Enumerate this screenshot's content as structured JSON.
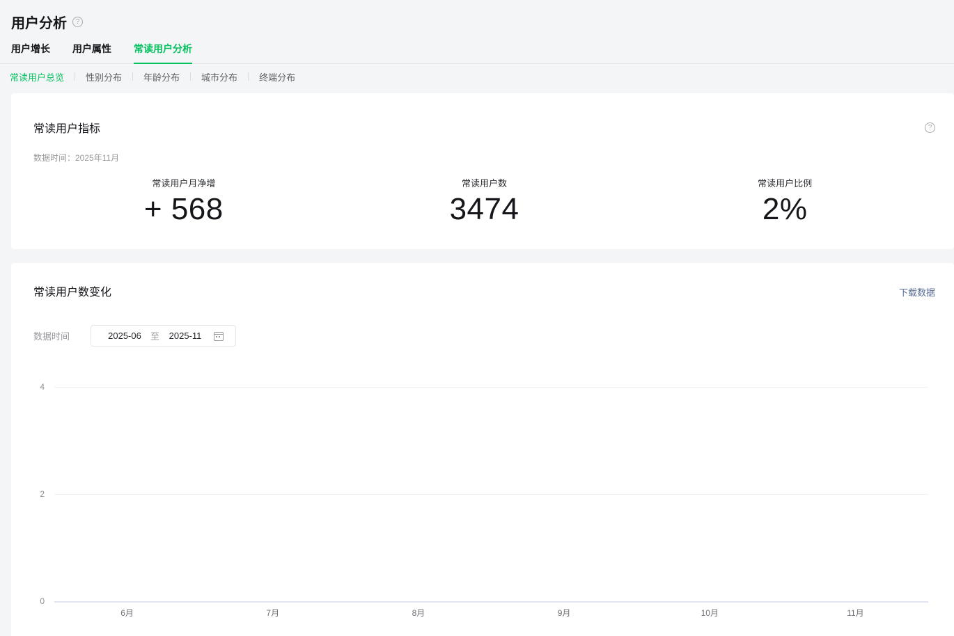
{
  "page": {
    "title": "用户分析"
  },
  "tabs": [
    {
      "label": "用户增长",
      "active": false
    },
    {
      "label": "用户属性",
      "active": false
    },
    {
      "label": "常读用户分析",
      "active": true
    }
  ],
  "subtabs": [
    {
      "label": "常读用户总览",
      "active": true
    },
    {
      "label": "性别分布",
      "active": false
    },
    {
      "label": "年龄分布",
      "active": false
    },
    {
      "label": "城市分布",
      "active": false
    },
    {
      "label": "终端分布",
      "active": false
    }
  ],
  "metrics_card": {
    "title": "常读用户指标",
    "data_time": "数据时间：2025年11月",
    "metrics": [
      {
        "label": "常读用户月净增",
        "value": "+ 568"
      },
      {
        "label": "常读用户数",
        "value": "3474"
      },
      {
        "label": "常读用户比例",
        "value": "2%"
      }
    ]
  },
  "chart_card": {
    "title": "常读用户数变化",
    "download_label": "下载数据",
    "filter_label": "数据时间",
    "date_start": "2025-06",
    "date_separator": "至",
    "date_end": "2025-11"
  },
  "chart_data": {
    "type": "line",
    "title": "常读用户数变化",
    "categories": [
      "6月",
      "7月",
      "8月",
      "9月",
      "10月",
      "11月"
    ],
    "series": [],
    "ylim": [
      0,
      4
    ],
    "yticks": [
      0,
      2,
      4
    ],
    "grid": true,
    "legend": false
  },
  "colors": {
    "accent_green": "#07c160",
    "link_blue": "#576b95",
    "text_dark": "#14161a",
    "text_gray": "#9a9a9e",
    "page_bg": "#f4f5f7",
    "card_bg": "#ffffff",
    "grid_line": "#f0f0f3",
    "axis_line": "#e2e5f0"
  }
}
